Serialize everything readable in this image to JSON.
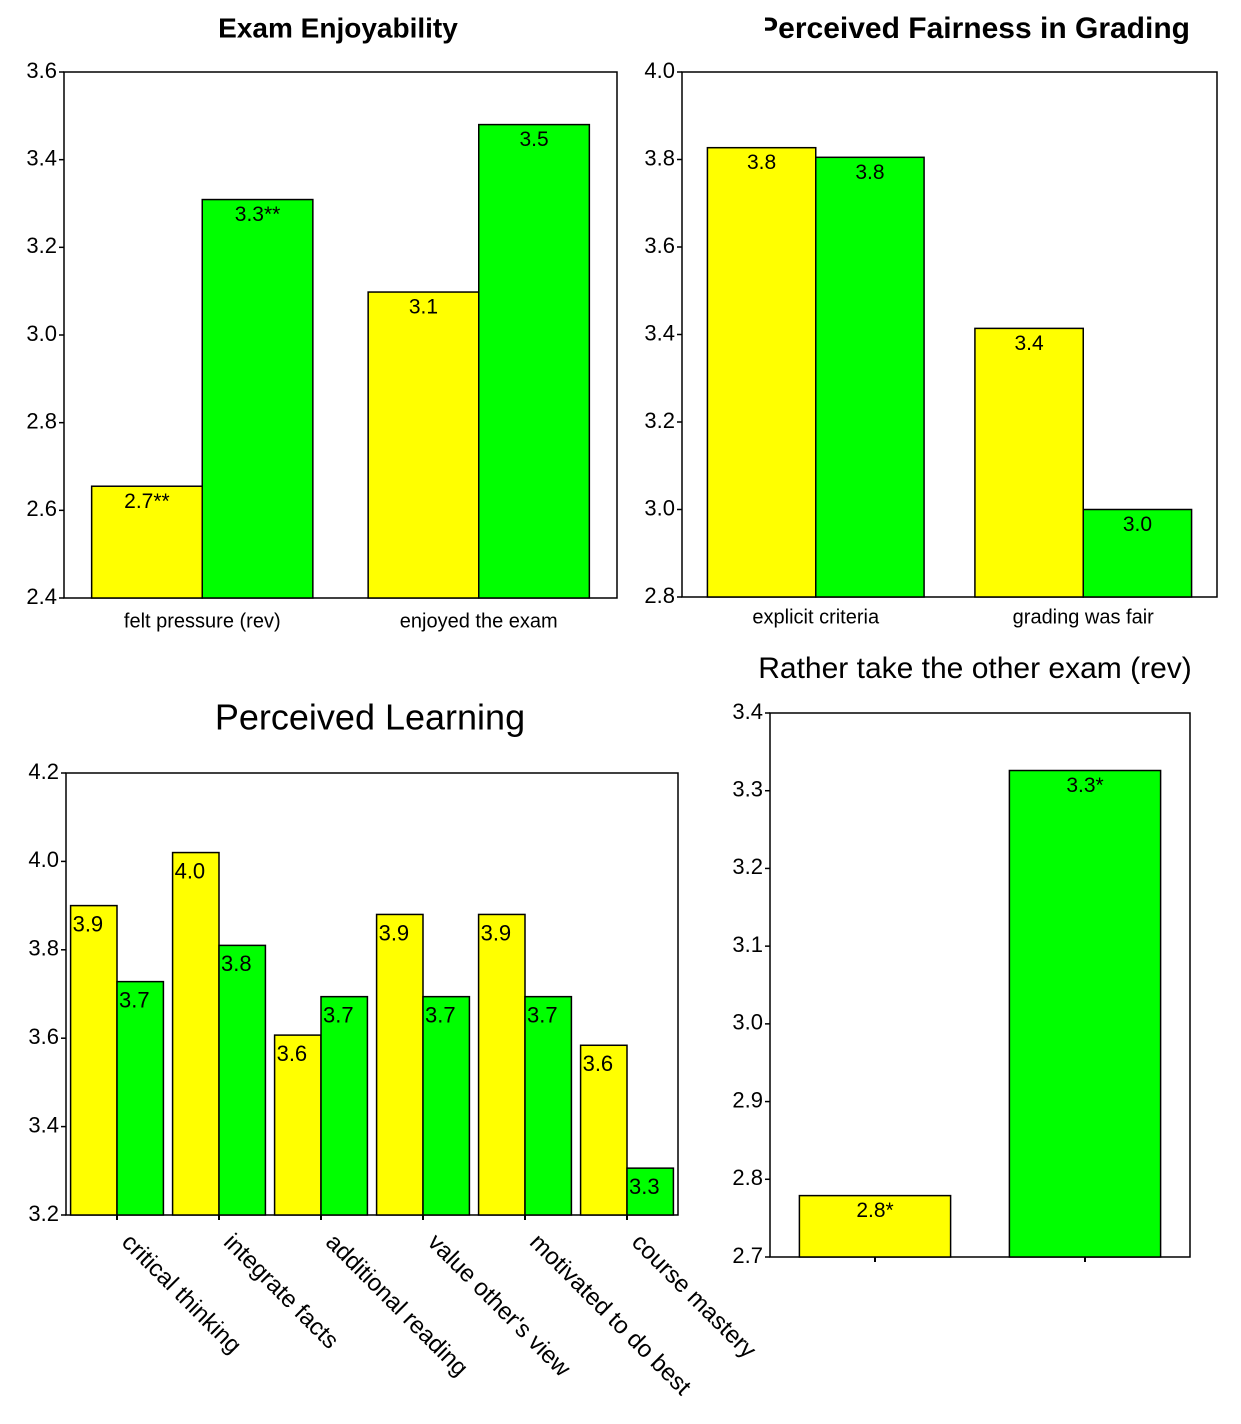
{
  "chart_data": [
    {
      "type": "bar",
      "title": "Exam Enjoyability",
      "categories": [
        "felt pressure (rev)",
        "enjoyed the exam"
      ],
      "series": [
        {
          "color": "#ffff00",
          "values": [
            2.655,
            3.098
          ],
          "value_labels": [
            "2.7**",
            "3.1"
          ]
        },
        {
          "color": "#00ff00",
          "values": [
            3.309,
            3.48
          ],
          "value_labels": [
            "3.3**",
            "3.5"
          ]
        }
      ],
      "ylim": [
        2.4,
        3.6
      ],
      "yticks": [
        2.4,
        2.6,
        2.8,
        {
          "value": 3,
          "label": "3.0"
        },
        3.2,
        3.4,
        3.6
      ]
    },
    {
      "type": "bar",
      "title": "Perceived Fairness in Grading",
      "categories": [
        "explicit criteria",
        "grading was fair"
      ],
      "series": [
        {
          "color": "#ffff00",
          "values": [
            3.827,
            3.414
          ],
          "value_labels": [
            "3.8",
            "3.4"
          ]
        },
        {
          "color": "#00ff00",
          "values": [
            3.805,
            3.0
          ],
          "value_labels": [
            "3.8",
            "3.0"
          ]
        }
      ],
      "ylim": [
        2.8,
        4
      ],
      "yticks": [
        2.8,
        {
          "value": 3,
          "label": "3.0"
        },
        3.2,
        3.4,
        3.6,
        3.8,
        {
          "value": 4,
          "label": "4.0"
        }
      ]
    },
    {
      "type": "bar",
      "title": "Perceived Learning",
      "categories": [
        "critical thinking",
        "integrate facts",
        "additional reading",
        "value other's view",
        "motivated to do best",
        "course mastery"
      ],
      "series": [
        {
          "color": "#ffff00",
          "values": [
            3.9,
            4.02,
            3.607,
            3.88,
            3.88,
            3.584
          ],
          "value_labels": [
            "3.9",
            "4.0",
            "3.6",
            "3.9",
            "3.9",
            "3.6"
          ]
        },
        {
          "color": "#00ff00",
          "values": [
            3.728,
            3.81,
            3.694,
            3.694,
            3.694,
            3.306
          ],
          "value_labels": [
            "3.7",
            "3.8",
            "3.7",
            "3.7",
            "3.7",
            "3.3"
          ]
        }
      ],
      "ylim": [
        3.2,
        4.2
      ],
      "yticks": [
        3.2,
        3.4,
        3.6,
        3.8,
        {
          "value": 4,
          "label": "4.0"
        },
        4.2
      ]
    },
    {
      "type": "bar",
      "title": "Rather take the other exam (rev)",
      "categories": [
        null,
        null
      ],
      "values": [
        2.779,
        3.326
      ],
      "colors": [
        "#ffff00",
        "#00ff00"
      ],
      "value_labels": [
        "2.8*",
        "3.3*"
      ],
      "ylim": [
        2.7,
        3.4
      ],
      "yticks": [
        2.7,
        2.8,
        2.9,
        {
          "value": 3,
          "label": "3.0"
        },
        3.1,
        3.2,
        3.3,
        3.4
      ]
    }
  ]
}
